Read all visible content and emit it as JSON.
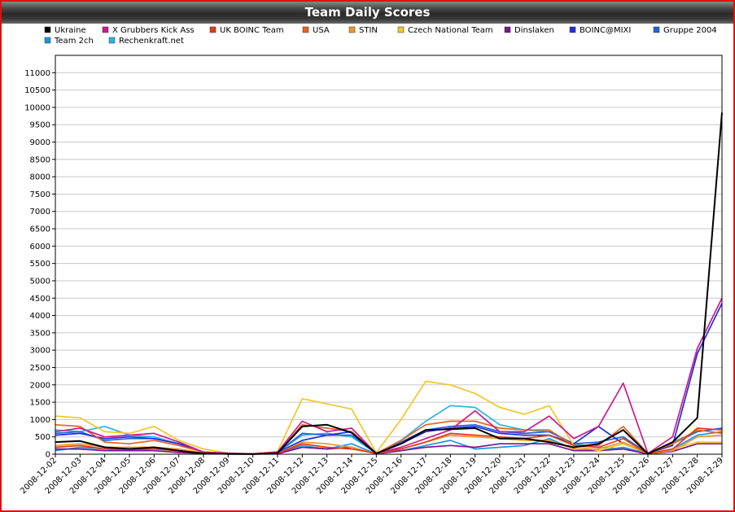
{
  "chart_data": {
    "type": "line",
    "title": "Team Daily Scores",
    "xlabel": "",
    "ylabel": "",
    "ylim": [
      0,
      11500
    ],
    "yticks": [
      0,
      500,
      1000,
      1500,
      2000,
      2500,
      3000,
      3500,
      4000,
      4500,
      5000,
      5500,
      6000,
      6500,
      7000,
      7500,
      8000,
      8500,
      9000,
      9500,
      10000,
      10500,
      11000
    ],
    "grid": true,
    "legend_position": "top",
    "categories": [
      "2008-12-02",
      "2008-12-03",
      "2008-12-04",
      "2008-12-05",
      "2008-12-06",
      "2008-12-07",
      "2008-12-08",
      "2008-12-09",
      "2008-12-10",
      "2008-12-11",
      "2008-12-12",
      "2008-12-13",
      "2008-12-14",
      "2008-12-15",
      "2008-12-16",
      "2008-12-17",
      "2008-12-18",
      "2008-12-19",
      "2008-12-20",
      "2008-12-21",
      "2008-12-22",
      "2008-12-23",
      "2008-12-24",
      "2008-12-25",
      "2008-12-26",
      "2008-12-27",
      "2008-12-28",
      "2008-12-29"
    ],
    "series": [
      {
        "name": "Ukraine",
        "color": "#000000",
        "values": [
          350,
          380,
          200,
          150,
          200,
          100,
          20,
          10,
          5,
          30,
          800,
          850,
          620,
          20,
          300,
          700,
          720,
          750,
          450,
          450,
          350,
          200,
          300,
          700,
          10,
          350,
          1050,
          9850
        ]
      },
      {
        "name": "X Grubbers Kick Ass",
        "color": "#cc1a8c",
        "values": [
          650,
          750,
          500,
          550,
          600,
          350,
          60,
          30,
          10,
          60,
          950,
          650,
          750,
          20,
          200,
          450,
          700,
          1250,
          650,
          650,
          1100,
          450,
          800,
          2050,
          20,
          500,
          3050,
          4500
        ]
      },
      {
        "name": "UK BOINC Team",
        "color": "#e03c14",
        "values": [
          200,
          250,
          150,
          150,
          150,
          100,
          30,
          10,
          5,
          20,
          300,
          200,
          150,
          20,
          150,
          350,
          600,
          550,
          500,
          450,
          550,
          250,
          200,
          450,
          10,
          150,
          750,
          700
        ]
      },
      {
        "name": "USA",
        "color": "#e8641e",
        "values": [
          850,
          800,
          350,
          300,
          400,
          250,
          60,
          20,
          5,
          50,
          850,
          750,
          650,
          20,
          400,
          850,
          950,
          950,
          750,
          700,
          700,
          250,
          250,
          800,
          20,
          300,
          700,
          600
        ]
      },
      {
        "name": "STIN",
        "color": "#f09628",
        "values": [
          250,
          300,
          200,
          200,
          200,
          150,
          30,
          10,
          5,
          20,
          350,
          300,
          200,
          10,
          150,
          350,
          550,
          500,
          450,
          400,
          400,
          150,
          150,
          350,
          10,
          100,
          500,
          550
        ]
      },
      {
        "name": "Czech National Team",
        "color": "#f0c828",
        "values": [
          1100,
          1050,
          650,
          600,
          800,
          400,
          150,
          30,
          10,
          80,
          1600,
          1450,
          1300,
          40,
          1000,
          2100,
          2000,
          1750,
          1350,
          1150,
          1400,
          250,
          100,
          300,
          20,
          150,
          350,
          350
        ]
      },
      {
        "name": "Dinslaken",
        "color": "#7a1490",
        "values": [
          150,
          150,
          100,
          100,
          100,
          50,
          20,
          5,
          2,
          10,
          200,
          150,
          200,
          10,
          100,
          200,
          250,
          200,
          300,
          300,
          300,
          100,
          100,
          150,
          5,
          80,
          300,
          300
        ]
      },
      {
        "name": "BOINC@MIXI",
        "color": "#1e2ee0",
        "values": [
          550,
          600,
          450,
          500,
          450,
          300,
          60,
          20,
          5,
          50,
          400,
          550,
          650,
          20,
          300,
          650,
          750,
          800,
          600,
          550,
          550,
          300,
          800,
          300,
          20,
          250,
          2900,
          4350
        ]
      },
      {
        "name": "Gruppe 2004",
        "color": "#1e64e0",
        "values": [
          600,
          650,
          400,
          450,
          450,
          300,
          60,
          20,
          5,
          50,
          600,
          550,
          550,
          20,
          350,
          700,
          800,
          850,
          650,
          600,
          650,
          300,
          350,
          500,
          20,
          300,
          650,
          750
        ]
      },
      {
        "name": "Team 2ch",
        "color": "#1e96e0",
        "values": [
          100,
          200,
          150,
          100,
          150,
          100,
          20,
          5,
          2,
          20,
          250,
          150,
          300,
          10,
          100,
          250,
          400,
          150,
          200,
          250,
          450,
          150,
          100,
          200,
          10,
          150,
          550,
          650
        ]
      },
      {
        "name": "Rechenkraft.net",
        "color": "#28b4e6",
        "values": [
          700,
          650,
          800,
          550,
          500,
          300,
          60,
          20,
          5,
          50,
          550,
          600,
          500,
          20,
          400,
          950,
          1400,
          1350,
          850,
          700,
          650,
          300,
          200,
          150,
          20,
          350,
          650,
          750
        ]
      }
    ]
  }
}
